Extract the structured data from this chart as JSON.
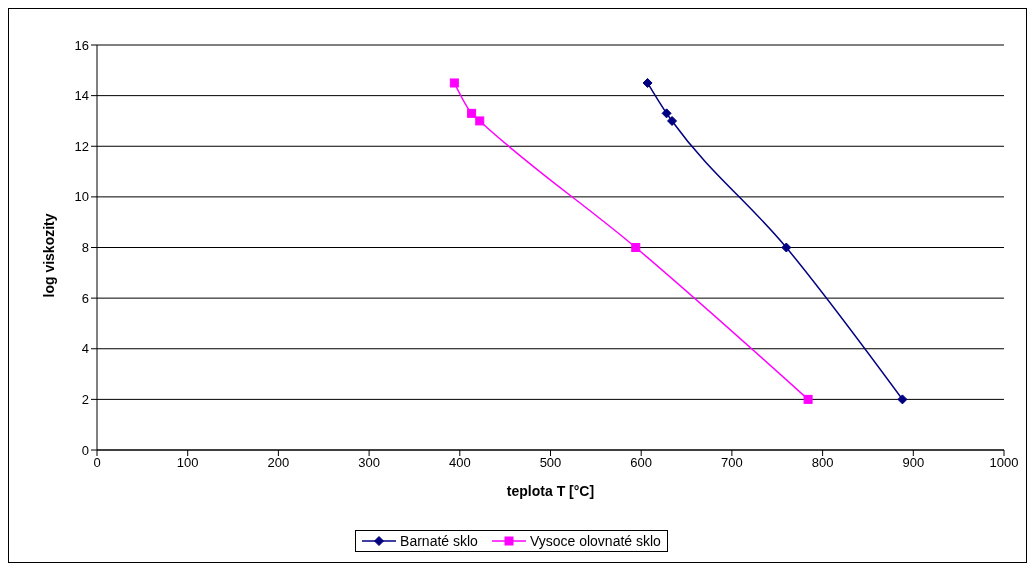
{
  "chart_data": {
    "type": "line",
    "xlabel": "teplota T [°C]",
    "ylabel": "log viskozity",
    "xlim": [
      0,
      1000
    ],
    "xticks": [
      0,
      100,
      200,
      300,
      400,
      500,
      600,
      700,
      800,
      900,
      1000
    ],
    "ylim": [
      0,
      16
    ],
    "yticks": [
      0,
      2,
      4,
      6,
      8,
      10,
      12,
      14,
      16
    ],
    "grid": "y",
    "legend": "bottom",
    "series": [
      {
        "name": "Barnaté sklo",
        "color": "#000080",
        "marker": "diamond",
        "x": [
          607,
          628,
          634,
          760,
          888
        ],
        "values": [
          14.5,
          13.3,
          13.0,
          8,
          2
        ]
      },
      {
        "name": "Vysoce olovnaté sklo",
        "color": "#ff00ff",
        "marker": "square",
        "x": [
          394,
          413,
          422,
          594,
          784
        ],
        "values": [
          14.5,
          13.3,
          13.0,
          8,
          2
        ]
      }
    ]
  }
}
